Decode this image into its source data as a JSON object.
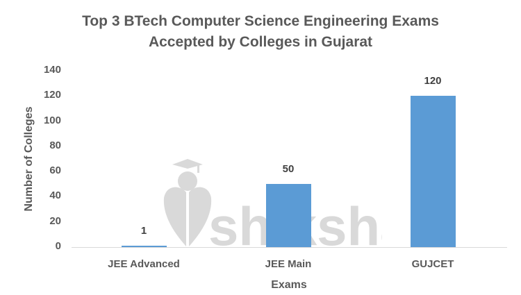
{
  "chart_data": {
    "type": "bar",
    "title": "Top 3 BTech Computer Science Engineering Exams Accepted by Colleges in Gujarat",
    "title_lines": [
      "Top 3 BTech Computer Science Engineering Exams",
      "Accepted by Colleges in Gujarat"
    ],
    "categories": [
      "JEE Advanced",
      "JEE Main",
      "GUJCET"
    ],
    "values": [
      1,
      50,
      120
    ],
    "data_labels": [
      "1",
      "50",
      "120"
    ],
    "xlabel": "Exams",
    "ylabel": "Number of Colleges",
    "ylim": [
      0,
      140
    ],
    "yticks": [
      0,
      20,
      40,
      60,
      80,
      100,
      120,
      140
    ],
    "grid": false,
    "legend": null,
    "bar_color": "#5b9bd5",
    "watermark": "shiksha"
  }
}
